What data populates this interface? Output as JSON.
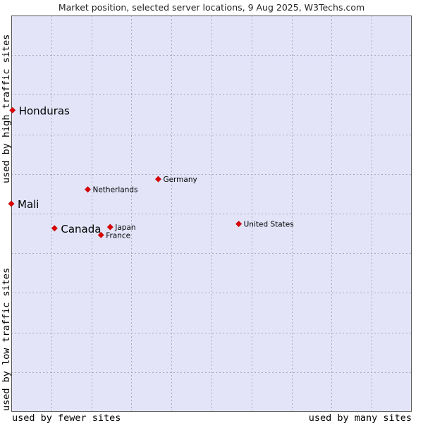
{
  "title": "Market position, selected server locations, 9 Aug 2025, W3Techs.com",
  "colors": {
    "plot_bg": "#e3e4f8",
    "grid": "#a9aab8",
    "point": "#e00000",
    "border": "#555555"
  },
  "chart_data": {
    "type": "scatter",
    "title": "Market position, selected server locations, 9 Aug 2025, W3Techs.com",
    "xlabel_left": "used by fewer sites",
    "xlabel_right": "used by many sites",
    "ylabel_bottom": "used by low traffic sites",
    "ylabel_top": "used by high traffic sites",
    "xlim": [
      0,
      100
    ],
    "ylim": [
      0,
      100
    ],
    "grid": true,
    "points": [
      {
        "name": "Honduras",
        "x": 0.3,
        "y": 76.1,
        "size": "large"
      },
      {
        "name": "Mali",
        "x": 0.0,
        "y": 52.5,
        "size": "large"
      },
      {
        "name": "Canada",
        "x": 10.8,
        "y": 46.3,
        "size": "large"
      },
      {
        "name": "Netherlands",
        "x": 19.1,
        "y": 56.1,
        "size": "small"
      },
      {
        "name": "Germany",
        "x": 36.7,
        "y": 58.7,
        "size": "small"
      },
      {
        "name": "Japan",
        "x": 24.7,
        "y": 46.6,
        "size": "small"
      },
      {
        "name": "France",
        "x": 22.4,
        "y": 44.6,
        "size": "small"
      },
      {
        "name": "United States",
        "x": 56.8,
        "y": 47.4,
        "size": "small"
      }
    ]
  }
}
